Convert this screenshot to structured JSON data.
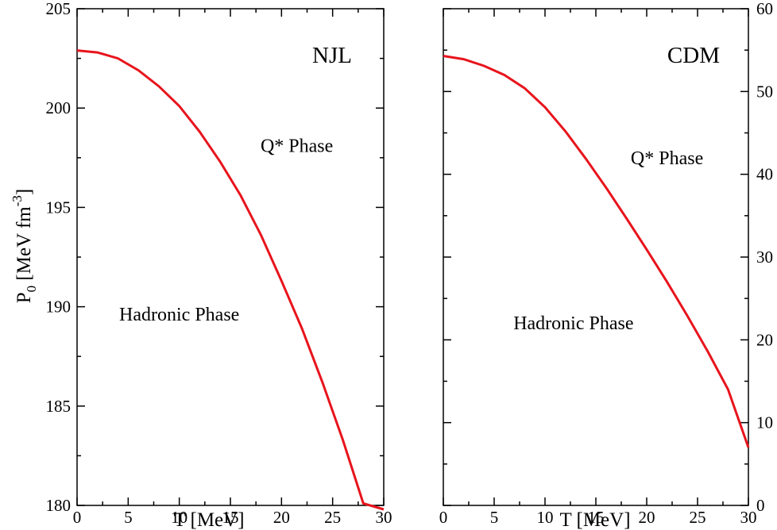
{
  "chart_data": [
    {
      "type": "line",
      "title": "NJL",
      "xlabel": "T [MeV]",
      "ylabel": "P_0 [MeV fm^-3]",
      "ylabel_base": "P",
      "ylabel_sub": "0",
      "ylabel_text": " [MeV fm",
      "ylabel_sup": "-3",
      "ylabel_close": "]",
      "xlim": [
        0,
        30
      ],
      "ylim": [
        180,
        205
      ],
      "xticks": [
        0,
        5,
        10,
        15,
        20,
        25,
        30
      ],
      "yticks": [
        180,
        185,
        190,
        195,
        200,
        205
      ],
      "yaxis_side": "left",
      "grid": false,
      "series": [
        {
          "name": "phase boundary",
          "color": "#e8141c",
          "x": [
            0,
            2,
            4,
            6,
            8,
            10,
            12,
            14,
            16,
            18,
            20,
            22,
            24,
            26,
            28,
            30
          ],
          "y": [
            202.9,
            202.8,
            202.5,
            201.9,
            201.1,
            200.1,
            198.8,
            197.3,
            195.6,
            193.6,
            191.3,
            188.9,
            186.2,
            183.3,
            180.1,
            179.8
          ]
        }
      ],
      "annotations": [
        {
          "text": "Q* Phase",
          "x": 21.5,
          "y": 197.8
        },
        {
          "text": "Hadronic Phase",
          "x": 10.0,
          "y": 189.3
        }
      ]
    },
    {
      "type": "line",
      "title": "CDM",
      "xlabel": "T [MeV]",
      "xlim": [
        0,
        30
      ],
      "ylim": [
        0,
        60
      ],
      "xticks": [
        0,
        5,
        10,
        15,
        20,
        25,
        30
      ],
      "yticks": [
        0,
        10,
        20,
        30,
        40,
        50,
        60
      ],
      "yaxis_side": "right",
      "grid": false,
      "series": [
        {
          "name": "phase boundary",
          "color": "#e8141c",
          "x": [
            0,
            2,
            4,
            6,
            8,
            10,
            12,
            14,
            16,
            18,
            20,
            22,
            24,
            26,
            28,
            30
          ],
          "y": [
            54.3,
            53.9,
            53.1,
            52.0,
            50.4,
            48.1,
            45.2,
            41.9,
            38.4,
            34.7,
            30.9,
            27.0,
            22.9,
            18.6,
            14.0,
            7.0
          ]
        }
      ],
      "annotations": [
        {
          "text": "Q* Phase",
          "x": 22.0,
          "y": 41.2
        },
        {
          "text": "Hadronic Phase",
          "x": 12.8,
          "y": 21.3
        }
      ]
    }
  ]
}
